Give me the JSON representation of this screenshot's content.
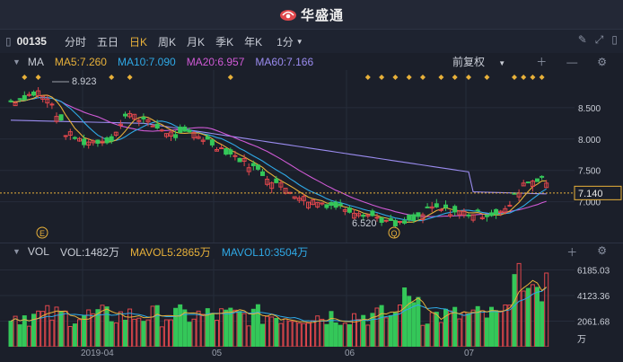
{
  "app": {
    "title": "华盛通"
  },
  "toolbar": {
    "symbol": "00135",
    "tabs": [
      "分时",
      "五日",
      "日K",
      "周K",
      "月K",
      "季K",
      "年K"
    ],
    "active_tab": "日K",
    "period": "1分"
  },
  "ma_bar": {
    "label": "MA",
    "ma5": "MA5:7.260",
    "ma10": "MA10:7.090",
    "ma20": "MA20:6.957",
    "ma60": "MA60:7.166",
    "adjust": "前复权"
  },
  "price_axis": {
    "ticks": [
      "8.500",
      "8.000",
      "7.500",
      "7.000"
    ],
    "current": "7.140",
    "high_label": "8.923",
    "low_label": "6.520",
    "marker_e": "E",
    "marker_q": "Q"
  },
  "vol_bar": {
    "label": "VOL",
    "vol": "VOL:1482万",
    "mavol5": "MAVOL5:2865万",
    "mavol10": "MAVOL10:3504万"
  },
  "vol_axis": {
    "ticks": [
      "6185.03",
      "4123.36",
      "2061.68"
    ],
    "unit": "万"
  },
  "time_axis": [
    "2019-04",
    "05",
    "06",
    "07"
  ],
  "colors": {
    "up": "#e0474c",
    "down": "#34c759",
    "ma5": "#e8b13a",
    "ma10": "#2fa9e6",
    "ma20": "#d05ad6",
    "ma60": "#9b8cf0",
    "accent": "#e8b13a"
  }
}
